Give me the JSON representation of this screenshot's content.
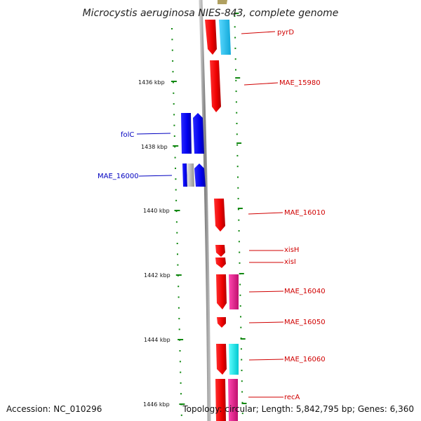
{
  "title": "Microcystis aeruginosa NIES-843, complete genome",
  "footer": {
    "accession": "Accession: NC_010296",
    "summary": "Topology: circular; Length: 5,842,795 bp; Genes: 6,360"
  },
  "scale": {
    "unit": "kbp",
    "labels": [
      "1436 kbp",
      "1438 kbp",
      "1440 kbp",
      "1442 kbp",
      "1444 kbp",
      "1446 kbp"
    ]
  },
  "genes": [
    {
      "label": "pyrD",
      "color": "#d00000",
      "side": "right"
    },
    {
      "label": "MAE_15980",
      "color": "#d00000",
      "side": "right"
    },
    {
      "label": "folC",
      "color": "#0000c0",
      "side": "left"
    },
    {
      "label": "MAE_16000",
      "color": "#0000c0",
      "side": "left"
    },
    {
      "label": "MAE_16010",
      "color": "#d00000",
      "side": "right"
    },
    {
      "label": "xisH",
      "color": "#d00000",
      "side": "right"
    },
    {
      "label": "xisI",
      "color": "#d00000",
      "side": "right"
    },
    {
      "label": "MAE_16040",
      "color": "#d00000",
      "side": "right"
    },
    {
      "label": "MAE_16050",
      "color": "#d00000",
      "side": "right"
    },
    {
      "label": "MAE_16060",
      "color": "#d00000",
      "side": "right"
    },
    {
      "label": "recA",
      "color": "#d00000",
      "side": "right"
    }
  ],
  "colors": {
    "forward_strand": "#ff0000",
    "reverse_strand": "#0000ee",
    "cog_blue": "#1ec8f0",
    "cog_magenta": "#e0208a",
    "cog_cyan": "#00e8ee",
    "cog_gray": "#b0b0b0",
    "backbone": "#888888",
    "tick": "#118811"
  }
}
